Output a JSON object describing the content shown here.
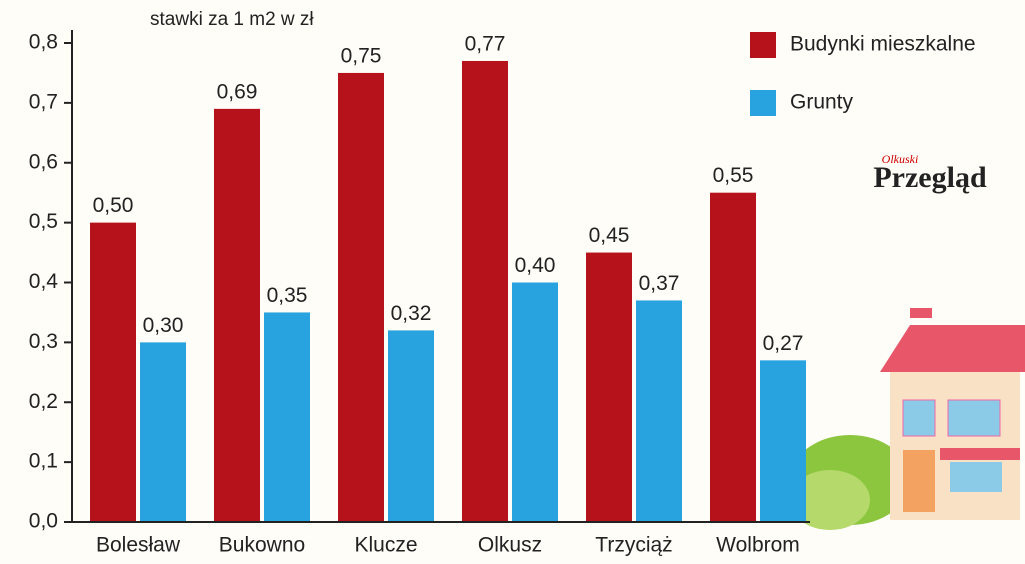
{
  "chart_data": {
    "type": "bar",
    "title": "stawki za 1 m2 w zł",
    "categories": [
      "Bolesław",
      "Bukowno",
      "Klucze",
      "Olkusz",
      "Trzyciąż",
      "Wolbrom"
    ],
    "series": [
      {
        "name": "Budynki mieszkalne",
        "color": "#b5121b",
        "values": [
          0.5,
          0.69,
          0.75,
          0.77,
          0.45,
          0.55
        ],
        "value_labels": [
          "0,50",
          "0,69",
          "0,75",
          "0,77",
          "0,45",
          "0,55"
        ]
      },
      {
        "name": "Grunty",
        "color": "#29a3df",
        "values": [
          0.3,
          0.35,
          0.32,
          0.4,
          0.37,
          0.27
        ],
        "value_labels": [
          "0,30",
          "0,35",
          "0,32",
          "0,40",
          "0,37",
          "0,27"
        ]
      }
    ],
    "ylim": [
      0,
      0.8
    ],
    "yticks": [
      {
        "value": 0,
        "label": "0,0"
      },
      {
        "value": 0.1,
        "label": "0,1"
      },
      {
        "value": 0.2,
        "label": "0,2"
      },
      {
        "value": 0.3,
        "label": "0,3"
      },
      {
        "value": 0.4,
        "label": "0,4"
      },
      {
        "value": 0.5,
        "label": "0,5"
      },
      {
        "value": 0.6,
        "label": "0,6"
      },
      {
        "value": 0.7,
        "label": "0,7"
      },
      {
        "value": 0.8,
        "label": "0,8"
      }
    ],
    "legend": "top-right"
  },
  "logo": {
    "small": "Olkuski",
    "main": "Przegląd"
  }
}
